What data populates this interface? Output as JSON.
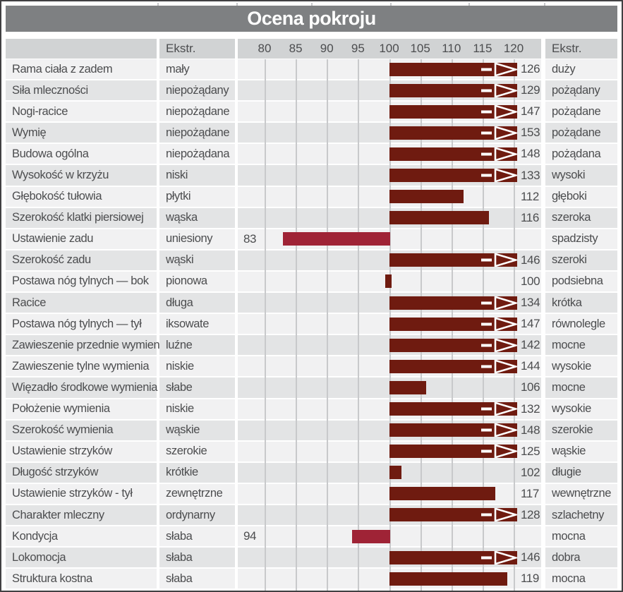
{
  "title": "Ocena pokroju",
  "header": {
    "left_extreme_label": "Ekstr.",
    "right_extreme_label": "Ekstr."
  },
  "colors": {
    "title_bg": "#7e8082",
    "header_bg": "#d1d3d4",
    "row_light": "#f1f1f2",
    "row_dark": "#e3e4e5",
    "gridline": "#c8c9cb",
    "bar_above_100": "#6f1b10",
    "bar_below_100": "#9f2336",
    "text": "#4c4d4f"
  },
  "chart_data": {
    "type": "bar",
    "orientation": "horizontal",
    "title": "Ocena pokroju",
    "x_ticks": [
      80,
      85,
      90,
      95,
      100,
      105,
      110,
      115,
      120
    ],
    "xlim": [
      80,
      120
    ],
    "baseline": 100,
    "overflow_above": 120,
    "grid": true,
    "rows": [
      {
        "name": "Rama ciała z zadem",
        "left_extreme": "mały",
        "value": 126,
        "right_extreme": "duży"
      },
      {
        "name": "Siła mleczności",
        "left_extreme": "niepożądany",
        "value": 129,
        "right_extreme": "pożądany"
      },
      {
        "name": "Nogi-racice",
        "left_extreme": "niepożądane",
        "value": 147,
        "right_extreme": "pożądane"
      },
      {
        "name": "Wymię",
        "left_extreme": "niepożądane",
        "value": 153,
        "right_extreme": "pożądane"
      },
      {
        "name": "Budowa ogólna",
        "left_extreme": "niepożądana",
        "value": 148,
        "right_extreme": "pożądana"
      },
      {
        "name": "Wysokość w krzyżu",
        "left_extreme": "niski",
        "value": 133,
        "right_extreme": "wysoki"
      },
      {
        "name": "Głębokość tułowia",
        "left_extreme": "płytki",
        "value": 112,
        "right_extreme": "głęboki"
      },
      {
        "name": "Szerokość klatki piersiowej",
        "left_extreme": "wąska",
        "value": 116,
        "right_extreme": "szeroka"
      },
      {
        "name": "Ustawienie zadu",
        "left_extreme": "uniesiony",
        "value": 83,
        "right_extreme": "spadzisty"
      },
      {
        "name": "Szerokość zadu",
        "left_extreme": "wąski",
        "value": 146,
        "right_extreme": "szeroki"
      },
      {
        "name": "Postawa nóg tylnych — bok",
        "left_extreme": "pionowa",
        "value": 100,
        "right_extreme": "podsiebna"
      },
      {
        "name": "Racice",
        "left_extreme": "długa",
        "value": 134,
        "right_extreme": "krótka"
      },
      {
        "name": "Postawa nóg tylnych — tył",
        "left_extreme": "iksowate",
        "value": 147,
        "right_extreme": "równolegle"
      },
      {
        "name": "Zawieszenie przednie wymienia",
        "left_extreme": "luźne",
        "value": 142,
        "right_extreme": "mocne"
      },
      {
        "name": "Zawieszenie tylne wymienia",
        "left_extreme": "niskie",
        "value": 144,
        "right_extreme": "wysokie"
      },
      {
        "name": "Więzadło środkowe wymienia",
        "left_extreme": "słabe",
        "value": 106,
        "right_extreme": "mocne"
      },
      {
        "name": "Położenie wymienia",
        "left_extreme": "niskie",
        "value": 132,
        "right_extreme": "wysokie"
      },
      {
        "name": "Szerokość wymienia",
        "left_extreme": "wąskie",
        "value": 148,
        "right_extreme": "szerokie"
      },
      {
        "name": "Ustawienie strzyków",
        "left_extreme": "szerokie",
        "value": 125,
        "right_extreme": "wąskie"
      },
      {
        "name": "Długość strzyków",
        "left_extreme": "krótkie",
        "value": 102,
        "right_extreme": "długie"
      },
      {
        "name": "Ustawienie strzyków - tył",
        "left_extreme": "zewnętrzne",
        "value": 117,
        "right_extreme": "wewnętrzne"
      },
      {
        "name": "Charakter mleczny",
        "left_extreme": "ordynarny",
        "value": 128,
        "right_extreme": "szlachetny"
      },
      {
        "name": "Kondycja",
        "left_extreme": "słaba",
        "value": 94,
        "right_extreme": "mocna"
      },
      {
        "name": "Lokomocja",
        "left_extreme": "słaba",
        "value": 146,
        "right_extreme": "dobra"
      },
      {
        "name": "Struktura kostna",
        "left_extreme": "słaba",
        "value": 119,
        "right_extreme": "mocna"
      }
    ]
  }
}
